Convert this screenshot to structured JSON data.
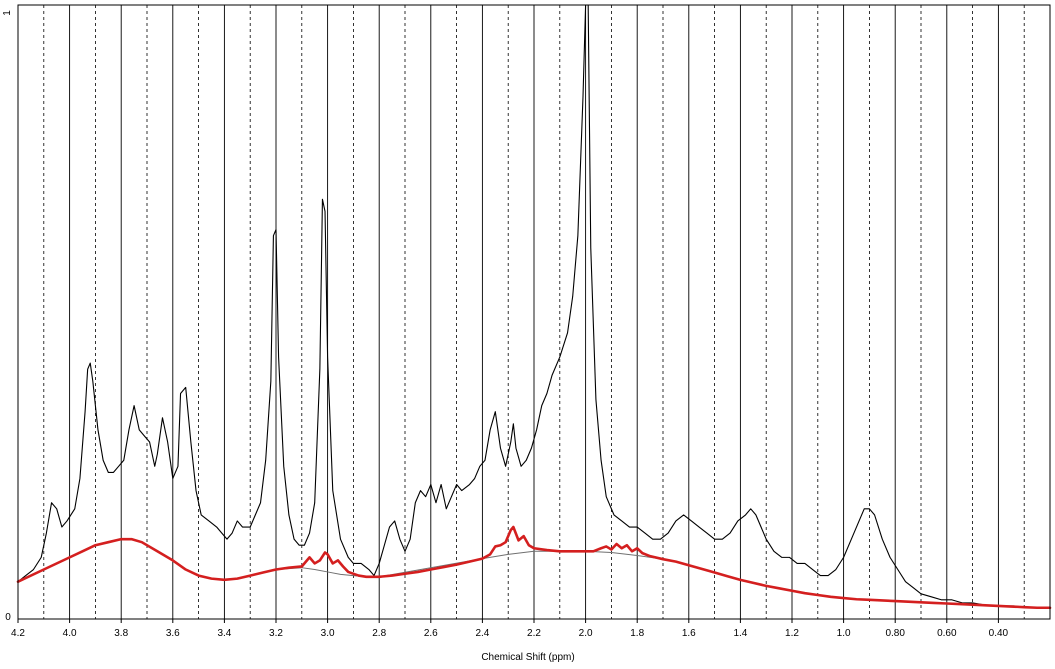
{
  "chart_data": {
    "type": "line",
    "title": "",
    "xlabel": "Chemical Shift (ppm)",
    "ylabel": "",
    "xlim": [
      4.2,
      0.2
    ],
    "ylim": [
      0,
      1
    ],
    "y_tick_labels": [
      "0",
      "1"
    ],
    "x_ticks": [
      {
        "v": 4.2,
        "label": "4.2"
      },
      {
        "v": 4.0,
        "label": "4.0"
      },
      {
        "v": 3.8,
        "label": "3.8"
      },
      {
        "v": 3.6,
        "label": "3.6"
      },
      {
        "v": 3.4,
        "label": "3.4"
      },
      {
        "v": 3.2,
        "label": "3.2"
      },
      {
        "v": 3.0,
        "label": "3.0"
      },
      {
        "v": 2.8,
        "label": "2.8"
      },
      {
        "v": 2.6,
        "label": "2.6"
      },
      {
        "v": 2.4,
        "label": "2.4"
      },
      {
        "v": 2.2,
        "label": "2.2"
      },
      {
        "v": 2.0,
        "label": "2.0"
      },
      {
        "v": 1.8,
        "label": "1.8"
      },
      {
        "v": 1.6,
        "label": "1.6"
      },
      {
        "v": 1.4,
        "label": "1.4"
      },
      {
        "v": 1.2,
        "label": "1.2"
      },
      {
        "v": 1.0,
        "label": "1.0"
      },
      {
        "v": 0.8,
        "label": "0.80"
      },
      {
        "v": 0.6,
        "label": "0.60"
      },
      {
        "v": 0.4,
        "label": "0.40"
      }
    ],
    "solid_gridlines": [
      4.0,
      3.8,
      3.6,
      3.4,
      3.2,
      3.0,
      2.8,
      2.6,
      2.4,
      2.2,
      2.0,
      1.8,
      1.6,
      1.4,
      1.2,
      1.0,
      0.8,
      0.6,
      0.4
    ],
    "dashed_gridlines": [
      4.1,
      3.9,
      3.7,
      3.5,
      3.3,
      3.1,
      2.9,
      2.7,
      2.5,
      2.3,
      2.1,
      1.9,
      1.7,
      1.5,
      1.3,
      1.1,
      0.9,
      0.7,
      0.5,
      0.3
    ],
    "colors": {
      "spectrum": "#000000",
      "fit": "#d41f1f",
      "baseline": "#707070",
      "grid": "#000000"
    },
    "series": [
      {
        "id": "spectrum",
        "color": "#000000",
        "points": [
          [
            4.2,
            0.05
          ],
          [
            4.17,
            0.06
          ],
          [
            4.14,
            0.07
          ],
          [
            4.11,
            0.09
          ],
          [
            4.09,
            0.13
          ],
          [
            4.07,
            0.18
          ],
          [
            4.05,
            0.17
          ],
          [
            4.03,
            0.14
          ],
          [
            4.01,
            0.15
          ],
          [
            3.98,
            0.17
          ],
          [
            3.96,
            0.22
          ],
          [
            3.94,
            0.33
          ],
          [
            3.93,
            0.4
          ],
          [
            3.92,
            0.41
          ],
          [
            3.91,
            0.38
          ],
          [
            3.89,
            0.3
          ],
          [
            3.87,
            0.25
          ],
          [
            3.85,
            0.23
          ],
          [
            3.83,
            0.23
          ],
          [
            3.81,
            0.24
          ],
          [
            3.79,
            0.25
          ],
          [
            3.77,
            0.3
          ],
          [
            3.75,
            0.34
          ],
          [
            3.73,
            0.3
          ],
          [
            3.71,
            0.29
          ],
          [
            3.69,
            0.28
          ],
          [
            3.67,
            0.24
          ],
          [
            3.66,
            0.26
          ],
          [
            3.64,
            0.32
          ],
          [
            3.62,
            0.28
          ],
          [
            3.6,
            0.22
          ],
          [
            3.58,
            0.24
          ],
          [
            3.57,
            0.36
          ],
          [
            3.55,
            0.37
          ],
          [
            3.53,
            0.28
          ],
          [
            3.51,
            0.2
          ],
          [
            3.49,
            0.16
          ],
          [
            3.46,
            0.15
          ],
          [
            3.43,
            0.14
          ],
          [
            3.41,
            0.13
          ],
          [
            3.39,
            0.12
          ],
          [
            3.37,
            0.13
          ],
          [
            3.35,
            0.15
          ],
          [
            3.33,
            0.14
          ],
          [
            3.3,
            0.14
          ],
          [
            3.28,
            0.16
          ],
          [
            3.26,
            0.18
          ],
          [
            3.24,
            0.25
          ],
          [
            3.22,
            0.38
          ],
          [
            3.21,
            0.62
          ],
          [
            3.2,
            0.63
          ],
          [
            3.19,
            0.42
          ],
          [
            3.17,
            0.24
          ],
          [
            3.15,
            0.16
          ],
          [
            3.13,
            0.12
          ],
          [
            3.11,
            0.11
          ],
          [
            3.09,
            0.11
          ],
          [
            3.07,
            0.13
          ],
          [
            3.05,
            0.18
          ],
          [
            3.03,
            0.4
          ],
          [
            3.02,
            0.68
          ],
          [
            3.01,
            0.66
          ],
          [
            3.0,
            0.42
          ],
          [
            2.98,
            0.2
          ],
          [
            2.95,
            0.12
          ],
          [
            2.92,
            0.09
          ],
          [
            2.9,
            0.08
          ],
          [
            2.87,
            0.08
          ],
          [
            2.84,
            0.07
          ],
          [
            2.82,
            0.06
          ],
          [
            2.8,
            0.08
          ],
          [
            2.78,
            0.11
          ],
          [
            2.76,
            0.14
          ],
          [
            2.74,
            0.15
          ],
          [
            2.72,
            0.12
          ],
          [
            2.7,
            0.1
          ],
          [
            2.68,
            0.12
          ],
          [
            2.66,
            0.18
          ],
          [
            2.64,
            0.2
          ],
          [
            2.62,
            0.19
          ],
          [
            2.6,
            0.21
          ],
          [
            2.58,
            0.18
          ],
          [
            2.56,
            0.21
          ],
          [
            2.54,
            0.17
          ],
          [
            2.52,
            0.19
          ],
          [
            2.5,
            0.21
          ],
          [
            2.48,
            0.2
          ],
          [
            2.45,
            0.21
          ],
          [
            2.43,
            0.22
          ],
          [
            2.41,
            0.24
          ],
          [
            2.39,
            0.25
          ],
          [
            2.37,
            0.3
          ],
          [
            2.35,
            0.33
          ],
          [
            2.33,
            0.27
          ],
          [
            2.31,
            0.24
          ],
          [
            2.29,
            0.28
          ],
          [
            2.28,
            0.31
          ],
          [
            2.27,
            0.27
          ],
          [
            2.25,
            0.24
          ],
          [
            2.23,
            0.25
          ],
          [
            2.21,
            0.27
          ],
          [
            2.19,
            0.3
          ],
          [
            2.17,
            0.34
          ],
          [
            2.15,
            0.36
          ],
          [
            2.13,
            0.39
          ],
          [
            2.1,
            0.42
          ],
          [
            2.07,
            0.46
          ],
          [
            2.05,
            0.52
          ],
          [
            2.03,
            0.62
          ],
          [
            2.01,
            0.85
          ],
          [
            2.0,
            1.0
          ],
          [
            1.99,
            1.0
          ],
          [
            1.98,
            0.6
          ],
          [
            1.96,
            0.35
          ],
          [
            1.94,
            0.25
          ],
          [
            1.92,
            0.19
          ],
          [
            1.89,
            0.16
          ],
          [
            1.86,
            0.15
          ],
          [
            1.83,
            0.14
          ],
          [
            1.8,
            0.14
          ],
          [
            1.77,
            0.13
          ],
          [
            1.74,
            0.12
          ],
          [
            1.71,
            0.12
          ],
          [
            1.68,
            0.13
          ],
          [
            1.65,
            0.15
          ],
          [
            1.62,
            0.16
          ],
          [
            1.59,
            0.15
          ],
          [
            1.56,
            0.14
          ],
          [
            1.53,
            0.13
          ],
          [
            1.5,
            0.12
          ],
          [
            1.47,
            0.12
          ],
          [
            1.44,
            0.13
          ],
          [
            1.41,
            0.15
          ],
          [
            1.38,
            0.16
          ],
          [
            1.36,
            0.17
          ],
          [
            1.34,
            0.16
          ],
          [
            1.32,
            0.14
          ],
          [
            1.3,
            0.12
          ],
          [
            1.27,
            0.1
          ],
          [
            1.24,
            0.09
          ],
          [
            1.21,
            0.09
          ],
          [
            1.18,
            0.08
          ],
          [
            1.15,
            0.08
          ],
          [
            1.12,
            0.07
          ],
          [
            1.09,
            0.06
          ],
          [
            1.06,
            0.06
          ],
          [
            1.03,
            0.07
          ],
          [
            1.0,
            0.09
          ],
          [
            0.97,
            0.12
          ],
          [
            0.94,
            0.15
          ],
          [
            0.92,
            0.17
          ],
          [
            0.9,
            0.17
          ],
          [
            0.88,
            0.16
          ],
          [
            0.85,
            0.12
          ],
          [
            0.82,
            0.09
          ],
          [
            0.79,
            0.07
          ],
          [
            0.76,
            0.05
          ],
          [
            0.73,
            0.04
          ],
          [
            0.7,
            0.03
          ],
          [
            0.66,
            0.025
          ],
          [
            0.62,
            0.02
          ],
          [
            0.58,
            0.02
          ],
          [
            0.54,
            0.015
          ],
          [
            0.5,
            0.015
          ],
          [
            0.46,
            0.012
          ],
          [
            0.42,
            0.01
          ],
          [
            0.38,
            0.01
          ],
          [
            0.34,
            0.01
          ],
          [
            0.3,
            0.008
          ],
          [
            0.26,
            0.008
          ],
          [
            0.22,
            0.008
          ],
          [
            0.2,
            0.008
          ]
        ]
      },
      {
        "id": "fit",
        "color": "#d41f1f",
        "points": [
          [
            4.2,
            0.05
          ],
          [
            4.1,
            0.07
          ],
          [
            4.0,
            0.09
          ],
          [
            3.95,
            0.1
          ],
          [
            3.9,
            0.11
          ],
          [
            3.85,
            0.115
          ],
          [
            3.8,
            0.12
          ],
          [
            3.76,
            0.12
          ],
          [
            3.72,
            0.115
          ],
          [
            3.66,
            0.1
          ],
          [
            3.6,
            0.085
          ],
          [
            3.55,
            0.07
          ],
          [
            3.5,
            0.06
          ],
          [
            3.45,
            0.055
          ],
          [
            3.4,
            0.053
          ],
          [
            3.35,
            0.055
          ],
          [
            3.3,
            0.06
          ],
          [
            3.25,
            0.065
          ],
          [
            3.2,
            0.07
          ],
          [
            3.15,
            0.073
          ],
          [
            3.1,
            0.075
          ],
          [
            3.08,
            0.085
          ],
          [
            3.07,
            0.09
          ],
          [
            3.05,
            0.08
          ],
          [
            3.03,
            0.085
          ],
          [
            3.01,
            0.098
          ],
          [
            3.0,
            0.095
          ],
          [
            2.98,
            0.08
          ],
          [
            2.96,
            0.085
          ],
          [
            2.94,
            0.075
          ],
          [
            2.92,
            0.066
          ],
          [
            2.88,
            0.06
          ],
          [
            2.85,
            0.058
          ],
          [
            2.8,
            0.058
          ],
          [
            2.75,
            0.06
          ],
          [
            2.7,
            0.063
          ],
          [
            2.65,
            0.066
          ],
          [
            2.6,
            0.07
          ],
          [
            2.55,
            0.074
          ],
          [
            2.5,
            0.078
          ],
          [
            2.45,
            0.083
          ],
          [
            2.4,
            0.088
          ],
          [
            2.37,
            0.095
          ],
          [
            2.35,
            0.108
          ],
          [
            2.33,
            0.11
          ],
          [
            2.31,
            0.115
          ],
          [
            2.29,
            0.135
          ],
          [
            2.28,
            0.14
          ],
          [
            2.26,
            0.118
          ],
          [
            2.24,
            0.125
          ],
          [
            2.22,
            0.11
          ],
          [
            2.2,
            0.105
          ],
          [
            2.15,
            0.102
          ],
          [
            2.1,
            0.1
          ],
          [
            2.05,
            0.1
          ],
          [
            2.0,
            0.1
          ],
          [
            1.97,
            0.1
          ],
          [
            1.94,
            0.105
          ],
          [
            1.92,
            0.108
          ],
          [
            1.9,
            0.103
          ],
          [
            1.88,
            0.112
          ],
          [
            1.86,
            0.105
          ],
          [
            1.84,
            0.11
          ],
          [
            1.82,
            0.1
          ],
          [
            1.8,
            0.105
          ],
          [
            1.78,
            0.097
          ],
          [
            1.75,
            0.092
          ],
          [
            1.7,
            0.087
          ],
          [
            1.65,
            0.083
          ],
          [
            1.6,
            0.077
          ],
          [
            1.55,
            0.071
          ],
          [
            1.5,
            0.065
          ],
          [
            1.45,
            0.059
          ],
          [
            1.4,
            0.053
          ],
          [
            1.35,
            0.048
          ],
          [
            1.3,
            0.043
          ],
          [
            1.25,
            0.039
          ],
          [
            1.2,
            0.035
          ],
          [
            1.15,
            0.031
          ],
          [
            1.1,
            0.028
          ],
          [
            1.05,
            0.025
          ],
          [
            1.0,
            0.023
          ],
          [
            0.95,
            0.021
          ],
          [
            0.9,
            0.02
          ],
          [
            0.85,
            0.019
          ],
          [
            0.8,
            0.018
          ],
          [
            0.75,
            0.017
          ],
          [
            0.7,
            0.016
          ],
          [
            0.65,
            0.015
          ],
          [
            0.6,
            0.014
          ],
          [
            0.55,
            0.013
          ],
          [
            0.5,
            0.012
          ],
          [
            0.45,
            0.011
          ],
          [
            0.4,
            0.01
          ],
          [
            0.35,
            0.009
          ],
          [
            0.3,
            0.008
          ],
          [
            0.25,
            0.007
          ],
          [
            0.2,
            0.007
          ]
        ]
      },
      {
        "id": "baseline",
        "color": "#707070",
        "points": [
          [
            3.2,
            0.07
          ],
          [
            3.1,
            0.073
          ],
          [
            3.05,
            0.07
          ],
          [
            3.0,
            0.066
          ],
          [
            2.95,
            0.062
          ],
          [
            2.9,
            0.06
          ],
          [
            2.85,
            0.058
          ],
          [
            2.8,
            0.058
          ],
          [
            2.4,
            0.088
          ],
          [
            2.3,
            0.095
          ],
          [
            2.2,
            0.1
          ],
          [
            2.1,
            0.1
          ],
          [
            2.0,
            0.1
          ],
          [
            1.9,
            0.098
          ],
          [
            1.8,
            0.093
          ],
          [
            1.7,
            0.087
          ]
        ]
      }
    ]
  }
}
